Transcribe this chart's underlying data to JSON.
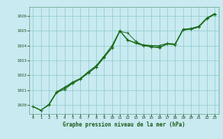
{
  "title": "Graphe pression niveau de la mer (hPa)",
  "background_color": "#c8eaf0",
  "grid_color": "#88c8c8",
  "line_color": "#1a6b1a",
  "spine_color": "#5a9a7a",
  "x_ticks": [
    0,
    1,
    2,
    3,
    4,
    5,
    6,
    7,
    8,
    9,
    10,
    11,
    12,
    13,
    14,
    15,
    16,
    17,
    18,
    19,
    20,
    21,
    22,
    23
  ],
  "y_ticks": [
    1020,
    1021,
    1022,
    1023,
    1024,
    1025,
    1026
  ],
  "ylim": [
    1019.4,
    1026.6
  ],
  "xlim": [
    -0.5,
    23.5
  ],
  "series": [
    [
      1019.9,
      1019.65,
      1020.0,
      1020.85,
      1021.05,
      1021.45,
      1021.75,
      1022.15,
      1022.55,
      1023.2,
      1023.85,
      1024.95,
      1024.85,
      1024.3,
      1024.0,
      1023.9,
      1023.85,
      1024.1,
      1024.05,
      1025.05,
      1025.1,
      1025.25,
      1025.8,
      1026.1
    ],
    [
      1019.9,
      1019.65,
      1020.0,
      1020.85,
      1021.15,
      1021.45,
      1021.75,
      1022.15,
      1022.55,
      1023.2,
      1023.85,
      1025.0,
      1024.4,
      1024.15,
      1024.0,
      1023.95,
      1023.9,
      1024.1,
      1024.1,
      1025.05,
      1025.1,
      1025.25,
      1025.8,
      1026.1
    ],
    [
      1019.9,
      1019.65,
      1020.0,
      1020.85,
      1021.15,
      1021.5,
      1021.75,
      1022.2,
      1022.6,
      1023.25,
      1023.9,
      1025.0,
      1024.35,
      1024.2,
      1024.05,
      1024.0,
      1024.0,
      1024.15,
      1024.1,
      1025.1,
      1025.15,
      1025.3,
      1025.85,
      1026.15
    ],
    [
      1019.9,
      1019.65,
      1020.05,
      1020.9,
      1021.2,
      1021.55,
      1021.8,
      1022.25,
      1022.65,
      1023.3,
      1024.0,
      1025.0,
      1024.35,
      1024.2,
      1024.05,
      1024.0,
      1024.0,
      1024.15,
      1024.1,
      1025.1,
      1025.15,
      1025.3,
      1025.85,
      1026.15
    ]
  ],
  "title_fontsize": 5.5,
  "tick_fontsize": 4.2,
  "linewidth": 0.7,
  "markersize": 2.5
}
